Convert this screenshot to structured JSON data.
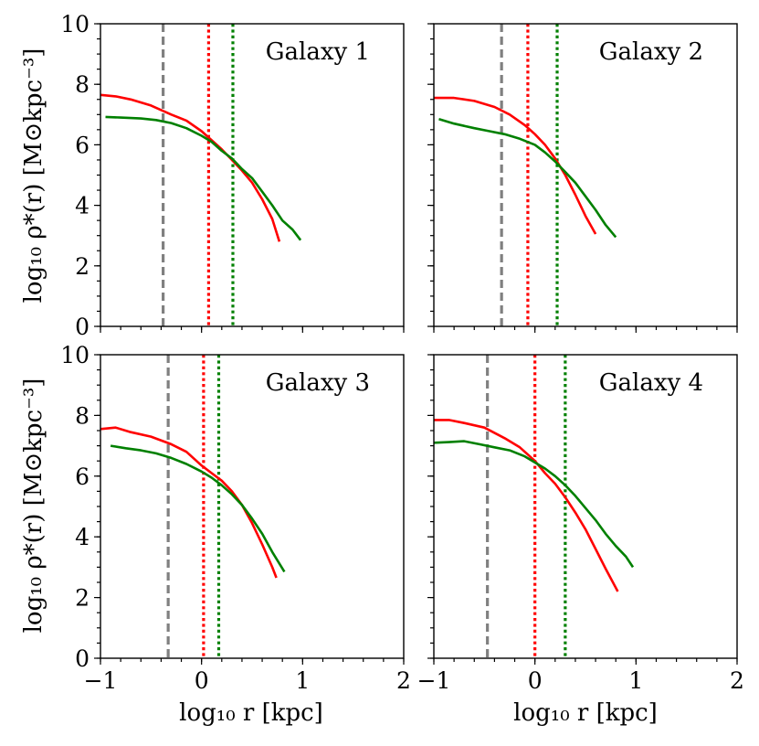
{
  "chart_data": {
    "type": "line",
    "layout": "2x2 grid, shared axes",
    "xlabel": "log₁₀ r [kpc]",
    "ylabel": "log₁₀ ρ*(r) [M⊙kpc⁻³]",
    "xlim": [
      -1,
      2
    ],
    "ylim": [
      0,
      10
    ],
    "xticks": [
      -1,
      0,
      1,
      2
    ],
    "xtick_labels": [
      "−1",
      "0",
      "1",
      "2"
    ],
    "yticks": [
      0,
      2,
      4,
      6,
      8,
      10
    ],
    "ytick_labels": [
      "0",
      "2",
      "4",
      "6",
      "8",
      "10"
    ],
    "colors": {
      "red": "#ff0000",
      "green": "#008000",
      "gray": "#808080"
    },
    "panels": [
      {
        "title": "Galaxy 1",
        "vlines": [
          {
            "x": -0.38,
            "color": "#808080",
            "style": "dashed"
          },
          {
            "x": 0.07,
            "color": "#ff0000",
            "style": "dotted"
          },
          {
            "x": 0.31,
            "color": "#008000",
            "style": "dotted"
          }
        ],
        "series": [
          {
            "name": "red",
            "color": "#ff0000",
            "x": [
              -1.0,
              -0.85,
              -0.7,
              -0.5,
              -0.3,
              -0.15,
              0.0,
              0.1,
              0.2,
              0.3,
              0.4,
              0.5,
              0.6,
              0.7,
              0.77
            ],
            "y": [
              7.65,
              7.6,
              7.5,
              7.3,
              7.0,
              6.8,
              6.45,
              6.15,
              5.85,
              5.5,
              5.15,
              4.75,
              4.2,
              3.55,
              2.8
            ]
          },
          {
            "name": "green",
            "color": "#008000",
            "x": [
              -0.95,
              -0.8,
              -0.6,
              -0.45,
              -0.3,
              -0.15,
              0.0,
              0.1,
              0.2,
              0.3,
              0.4,
              0.5,
              0.6,
              0.7,
              0.8,
              0.9,
              0.98
            ],
            "y": [
              6.92,
              6.9,
              6.87,
              6.82,
              6.72,
              6.55,
              6.3,
              6.1,
              5.8,
              5.55,
              5.2,
              4.9,
              4.45,
              4.0,
              3.5,
              3.2,
              2.85
            ]
          }
        ]
      },
      {
        "title": "Galaxy 2",
        "vlines": [
          {
            "x": -0.33,
            "color": "#808080",
            "style": "dashed"
          },
          {
            "x": -0.07,
            "color": "#ff0000",
            "style": "dotted"
          },
          {
            "x": 0.22,
            "color": "#008000",
            "style": "dotted"
          }
        ],
        "series": [
          {
            "name": "red",
            "color": "#ff0000",
            "x": [
              -1.0,
              -0.8,
              -0.6,
              -0.4,
              -0.25,
              -0.1,
              0.0,
              0.1,
              0.2,
              0.3,
              0.4,
              0.5,
              0.6
            ],
            "y": [
              7.55,
              7.55,
              7.45,
              7.25,
              7.0,
              6.65,
              6.35,
              6.0,
              5.55,
              5.0,
              4.35,
              3.65,
              3.05
            ]
          },
          {
            "name": "green",
            "color": "#008000",
            "x": [
              -0.95,
              -0.8,
              -0.6,
              -0.45,
              -0.3,
              -0.15,
              0.0,
              0.1,
              0.2,
              0.3,
              0.4,
              0.5,
              0.6,
              0.7,
              0.8
            ],
            "y": [
              6.85,
              6.7,
              6.55,
              6.45,
              6.35,
              6.2,
              6.0,
              5.75,
              5.45,
              5.1,
              4.75,
              4.3,
              3.85,
              3.35,
              2.95
            ]
          }
        ]
      },
      {
        "title": "Galaxy 3",
        "vlines": [
          {
            "x": -0.33,
            "color": "#808080",
            "style": "dashed"
          },
          {
            "x": 0.02,
            "color": "#ff0000",
            "style": "dotted"
          },
          {
            "x": 0.17,
            "color": "#008000",
            "style": "dotted"
          }
        ],
        "series": [
          {
            "name": "red",
            "color": "#ff0000",
            "x": [
              -1.0,
              -0.85,
              -0.7,
              -0.5,
              -0.3,
              -0.15,
              0.0,
              0.1,
              0.2,
              0.3,
              0.4,
              0.5,
              0.6,
              0.7,
              0.74
            ],
            "y": [
              7.55,
              7.6,
              7.45,
              7.3,
              7.05,
              6.8,
              6.35,
              6.1,
              5.85,
              5.5,
              5.05,
              4.45,
              3.75,
              3.0,
              2.65
            ]
          },
          {
            "name": "green",
            "color": "#008000",
            "x": [
              -0.9,
              -0.75,
              -0.6,
              -0.45,
              -0.3,
              -0.15,
              0.0,
              0.1,
              0.2,
              0.3,
              0.4,
              0.5,
              0.6,
              0.7,
              0.82
            ],
            "y": [
              7.0,
              6.92,
              6.85,
              6.75,
              6.6,
              6.4,
              6.15,
              5.95,
              5.7,
              5.4,
              5.05,
              4.6,
              4.1,
              3.5,
              2.85
            ]
          }
        ]
      },
      {
        "title": "Galaxy 4",
        "vlines": [
          {
            "x": -0.47,
            "color": "#808080",
            "style": "dashed"
          },
          {
            "x": 0.0,
            "color": "#ff0000",
            "style": "dotted"
          },
          {
            "x": 0.3,
            "color": "#008000",
            "style": "dotted"
          }
        ],
        "series": [
          {
            "name": "red",
            "color": "#ff0000",
            "x": [
              -1.0,
              -0.85,
              -0.7,
              -0.5,
              -0.3,
              -0.15,
              0.0,
              0.1,
              0.2,
              0.3,
              0.4,
              0.5,
              0.6,
              0.7,
              0.82
            ],
            "y": [
              7.85,
              7.85,
              7.75,
              7.6,
              7.25,
              6.95,
              6.5,
              6.1,
              5.75,
              5.3,
              4.8,
              4.25,
              3.6,
              2.95,
              2.2
            ]
          },
          {
            "name": "green",
            "color": "#008000",
            "x": [
              -1.0,
              -0.85,
              -0.7,
              -0.55,
              -0.4,
              -0.25,
              -0.1,
              0.0,
              0.1,
              0.2,
              0.3,
              0.4,
              0.5,
              0.6,
              0.7,
              0.8,
              0.9,
              0.97
            ],
            "y": [
              7.1,
              7.12,
              7.15,
              7.05,
              6.95,
              6.85,
              6.65,
              6.45,
              6.25,
              6.0,
              5.7,
              5.35,
              4.95,
              4.55,
              4.1,
              3.7,
              3.35,
              3.0
            ]
          }
        ]
      }
    ]
  }
}
